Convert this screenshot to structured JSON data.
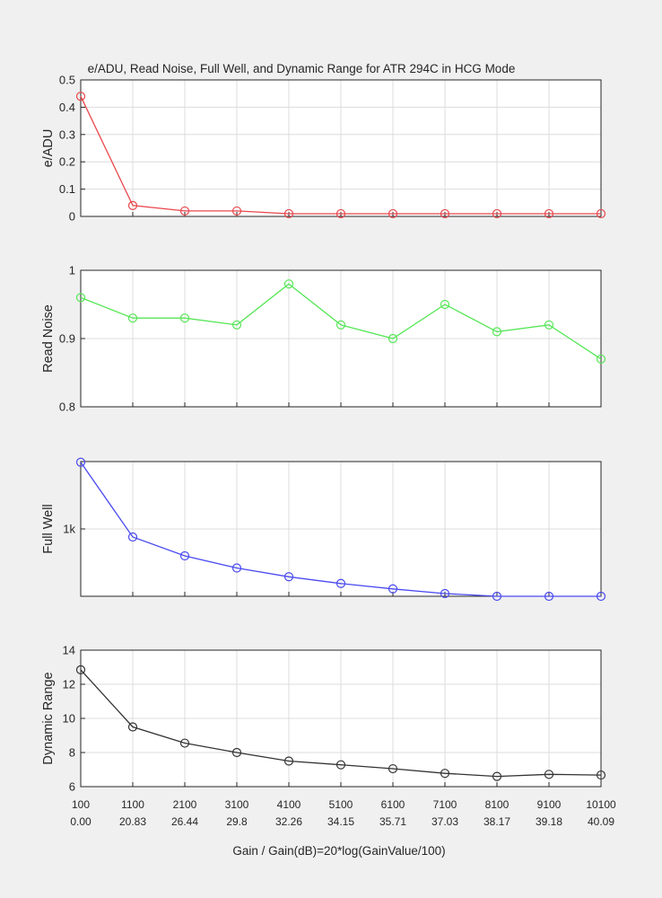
{
  "figure": {
    "title": "e/ADU, Read Noise, Full Well, and Dynamic Range for  ATR 294C  in HCG Mode",
    "xlabel": "Gain / Gain(dB)=20*log(GainValue/100)"
  },
  "colors": {
    "background": "#f0f0f0",
    "plot_bg": "#ffffff",
    "grid": "#dcdcdc",
    "axis": "#262626"
  },
  "chart_data": [
    {
      "type": "line",
      "title": "e/ADU, Read Noise, Full Well, and Dynamic Range for  ATR 294C  in HCG Mode",
      "ylabel": "e/ADU",
      "color": "#e8474c",
      "ylim": [
        0,
        0.5
      ],
      "yticks": [
        0,
        0.1,
        0.2,
        0.3,
        0.4,
        0.5
      ],
      "ytick_labels": [
        "0",
        "0.1",
        "0.2",
        "0.3",
        "0.4",
        "0.5"
      ],
      "x": [
        100,
        1100,
        2100,
        3100,
        4100,
        5100,
        6100,
        7100,
        8100,
        9100,
        10100
      ],
      "values": [
        0.44,
        0.04,
        0.02,
        0.02,
        0.01,
        0.01,
        0.01,
        0.01,
        0.01,
        0.01,
        0.01
      ],
      "xlim": [
        100,
        10100
      ],
      "grid": true
    },
    {
      "type": "line",
      "ylabel": "Read Noise",
      "color": "#56e656",
      "ylim": [
        0.8,
        1.0
      ],
      "yticks": [
        0.8,
        0.9,
        1.0
      ],
      "ytick_labels": [
        "0.8",
        "0.9",
        "1"
      ],
      "x": [
        100,
        1100,
        2100,
        3100,
        4100,
        5100,
        6100,
        7100,
        8100,
        9100,
        10100
      ],
      "values": [
        0.96,
        0.93,
        0.93,
        0.92,
        0.98,
        0.92,
        0.9,
        0.95,
        0.91,
        0.92,
        0.87
      ],
      "xlim": [
        100,
        10100
      ],
      "grid": true
    },
    {
      "type": "line",
      "ylabel": "Full Well",
      "color": "#4a4af0",
      "ylim": [
        0,
        2000
      ],
      "yticks": [
        1000
      ],
      "ytick_labels": [
        "1k"
      ],
      "x": [
        100,
        1100,
        2100,
        3100,
        4100,
        5100,
        6100,
        7100,
        8100,
        9100,
        10100
      ],
      "values": [
        1990,
        880,
        600,
        420,
        290,
        190,
        110,
        40,
        0,
        0,
        0
      ],
      "xlim": [
        100,
        10100
      ],
      "grid": true
    },
    {
      "type": "line",
      "ylabel": "Dynamic Range",
      "color": "#333333",
      "ylim": [
        6,
        14
      ],
      "yticks": [
        6,
        8,
        10,
        12,
        14
      ],
      "ytick_labels": [
        "6",
        "8",
        "10",
        "12",
        "14"
      ],
      "x": [
        100,
        1100,
        2100,
        3100,
        4100,
        5100,
        6100,
        7100,
        8100,
        9100,
        10100
      ],
      "values": [
        12.85,
        9.5,
        8.55,
        8.0,
        7.5,
        7.28,
        7.05,
        6.78,
        6.6,
        6.72,
        6.68
      ],
      "xlim": [
        100,
        10100
      ],
      "grid": true,
      "xtick_labels": [
        "100",
        "1100",
        "2100",
        "3100",
        "4100",
        "5100",
        "6100",
        "7100",
        "8100",
        "9100",
        "10100"
      ],
      "xtick_labels_db": [
        "0.00",
        "20.83",
        "26.44",
        "29.8",
        "32.26",
        "34.15",
        "35.71",
        "37.03",
        "38.17",
        "39.18",
        "40.09"
      ]
    }
  ]
}
